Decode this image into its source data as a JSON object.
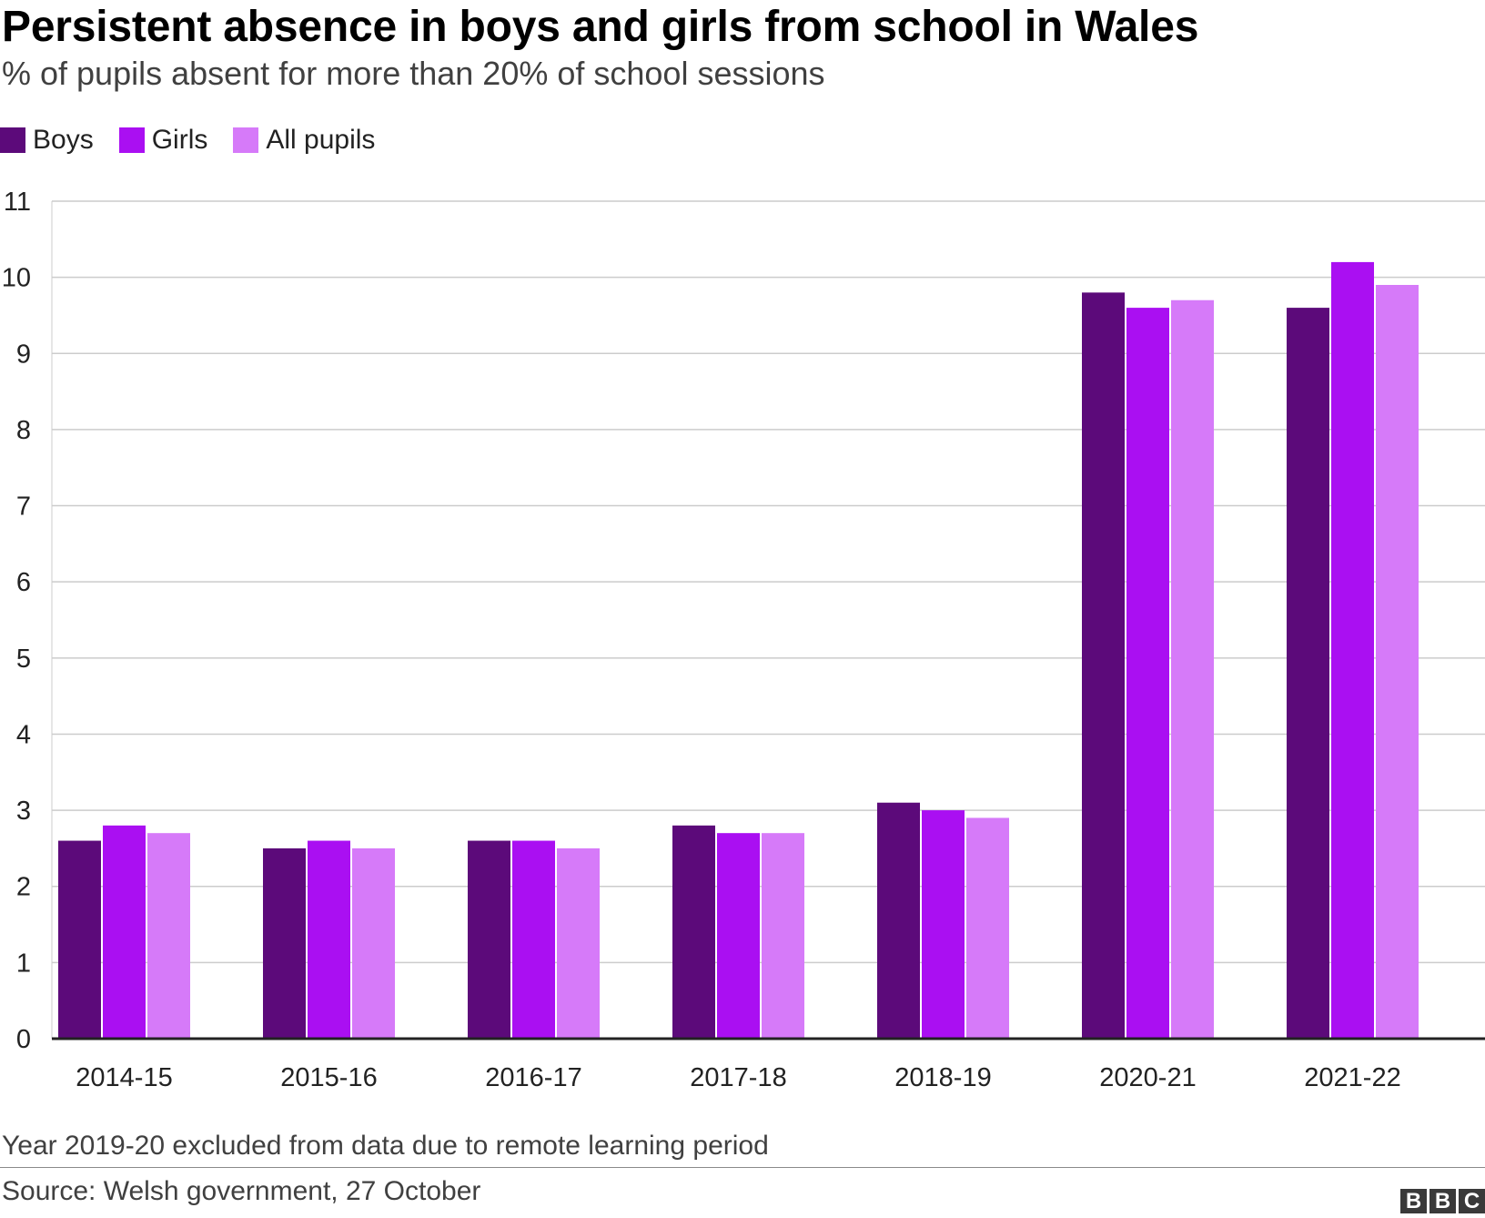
{
  "title": "Persistent absence in boys and girls from school in Wales",
  "subtitle": "% of pupils absent for more than 20% of school sessions",
  "note": "Year 2019-20 excluded from data due to remote learning period",
  "source": "Source: Welsh government, 27 October",
  "logo": [
    "B",
    "B",
    "C"
  ],
  "legend": [
    {
      "label": "Boys",
      "color": "#5c0a7a"
    },
    {
      "label": "Girls",
      "color": "#aa0ff2"
    },
    {
      "label": "All pupils",
      "color": "#d67af9"
    }
  ],
  "chart_data": {
    "type": "bar",
    "categories": [
      "2014-15",
      "2015-16",
      "2016-17",
      "2017-18",
      "2018-19",
      "2020-21",
      "2021-22"
    ],
    "series": [
      {
        "name": "Boys",
        "color": "#5c0a7a",
        "values": [
          2.6,
          2.5,
          2.6,
          2.8,
          3.1,
          9.8,
          9.6
        ]
      },
      {
        "name": "Girls",
        "color": "#aa0ff2",
        "values": [
          2.8,
          2.6,
          2.6,
          2.7,
          3.0,
          9.6,
          10.2
        ]
      },
      {
        "name": "All pupils",
        "color": "#d67af9",
        "values": [
          2.7,
          2.5,
          2.5,
          2.7,
          2.9,
          9.7,
          9.9
        ]
      }
    ],
    "title": "Persistent absence in boys and girls from school in Wales",
    "xlabel": "",
    "ylabel": "",
    "ylim": [
      0,
      11
    ],
    "yticks": [
      0,
      1,
      2,
      3,
      4,
      5,
      6,
      7,
      8,
      9,
      10,
      11
    ],
    "grid": true,
    "legend_position": "top-left"
  }
}
